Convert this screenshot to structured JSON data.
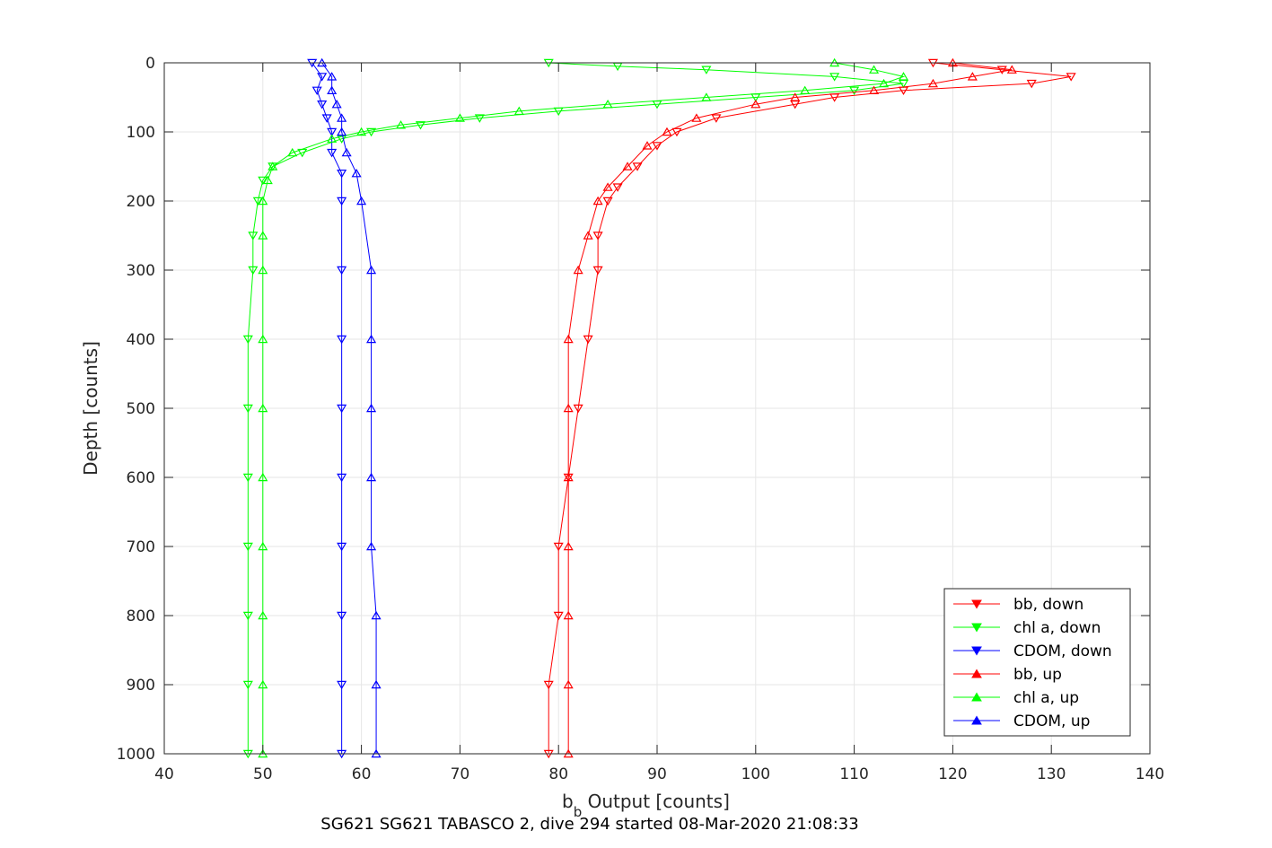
{
  "chart_data": {
    "type": "scatter",
    "title": "",
    "caption": "SG621 SG621 TABASCO 2, dive 294 started 08-Mar-2020 21:08:33",
    "xlabel_main": "b",
    "xlabel_sub": "b",
    "xlabel_rest": " Output [counts]",
    "ylabel": "Depth [counts]",
    "xlim": [
      40,
      140
    ],
    "ylim": [
      0,
      1000
    ],
    "y_reversed": true,
    "grid": true,
    "x_ticks": [
      "40",
      "50",
      "60",
      "70",
      "80",
      "90",
      "100",
      "110",
      "120",
      "130",
      "140"
    ],
    "y_ticks": [
      "0",
      "100",
      "200",
      "300",
      "400",
      "500",
      "600",
      "700",
      "800",
      "900",
      "1000"
    ],
    "legend_position": "bottom-right",
    "series": [
      {
        "name": "bb, down",
        "color": "#ff0000",
        "marker": "triangle-down",
        "depth": [
          0,
          10,
          20,
          30,
          40,
          50,
          60,
          80,
          100,
          120,
          150,
          180,
          200,
          250,
          300,
          400,
          500,
          600,
          700,
          800,
          900,
          1000
        ],
        "values": [
          118,
          125,
          132,
          128,
          115,
          108,
          104,
          96,
          92,
          90,
          88,
          86,
          85,
          84,
          84,
          83,
          82,
          81,
          80,
          80,
          79,
          79
        ]
      },
      {
        "name": "chl a, down",
        "color": "#00ff00",
        "marker": "triangle-down",
        "depth": [
          0,
          5,
          10,
          20,
          30,
          40,
          50,
          60,
          70,
          80,
          90,
          100,
          110,
          130,
          150,
          170,
          200,
          250,
          300,
          400,
          500,
          600,
          700,
          800,
          900,
          1000
        ],
        "values": [
          79,
          86,
          95,
          108,
          115,
          110,
          100,
          90,
          80,
          72,
          66,
          61,
          58,
          54,
          51,
          50,
          49.5,
          49,
          49,
          48.5,
          48.5,
          48.5,
          48.5,
          48.5,
          48.5,
          48.5
        ]
      },
      {
        "name": "CDOM, down",
        "color": "#0000ff",
        "marker": "triangle-down",
        "depth": [
          0,
          20,
          40,
          60,
          80,
          100,
          130,
          160,
          200,
          300,
          400,
          500,
          600,
          700,
          800,
          900,
          1000
        ],
        "values": [
          55,
          56,
          55.5,
          56,
          56.5,
          57,
          57,
          58,
          58,
          58,
          58,
          58,
          58,
          58,
          58,
          58,
          58
        ]
      },
      {
        "name": "bb, up",
        "color": "#ff0000",
        "marker": "triangle-up",
        "depth": [
          0,
          10,
          20,
          30,
          40,
          50,
          60,
          80,
          100,
          120,
          150,
          180,
          200,
          250,
          300,
          400,
          500,
          600,
          700,
          800,
          900,
          1000
        ],
        "values": [
          120,
          126,
          122,
          118,
          112,
          104,
          100,
          94,
          91,
          89,
          87,
          85,
          84,
          83,
          82,
          81,
          81,
          81,
          81,
          81,
          81,
          81
        ]
      },
      {
        "name": "chl a, up",
        "color": "#00ff00",
        "marker": "triangle-up",
        "depth": [
          0,
          10,
          20,
          30,
          40,
          50,
          60,
          70,
          80,
          90,
          100,
          110,
          130,
          150,
          170,
          200,
          250,
          300,
          400,
          500,
          600,
          700,
          800,
          900,
          1000
        ],
        "values": [
          108,
          112,
          115,
          113,
          105,
          95,
          85,
          76,
          70,
          64,
          60,
          57,
          53,
          51,
          50.5,
          50,
          50,
          50,
          50,
          50,
          50,
          50,
          50,
          50,
          50
        ]
      },
      {
        "name": "CDOM, up",
        "color": "#0000ff",
        "marker": "triangle-up",
        "depth": [
          0,
          20,
          40,
          60,
          80,
          100,
          130,
          160,
          200,
          300,
          400,
          500,
          600,
          700,
          800,
          900,
          1000
        ],
        "values": [
          56,
          57,
          57,
          57.5,
          58,
          58,
          58.5,
          59.5,
          60,
          61,
          61,
          61,
          61,
          61,
          61.5,
          61.5,
          61.5
        ]
      }
    ]
  }
}
